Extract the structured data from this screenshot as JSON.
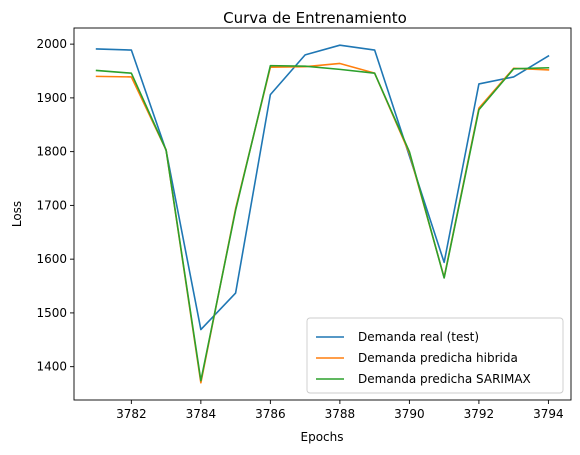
{
  "chart_data": {
    "type": "line",
    "title": "Curva de Entrenamiento",
    "xlabel": "Epochs",
    "ylabel": "Loss",
    "xlim": [
      3780.35,
      3794.65
    ],
    "ylim": [
      1338,
      2030
    ],
    "xticks": [
      3782,
      3784,
      3786,
      3788,
      3790,
      3792,
      3794
    ],
    "yticks": [
      1400,
      1500,
      1600,
      1700,
      1800,
      1900,
      2000
    ],
    "grid": false,
    "legend_position": "lower-right",
    "x": [
      3781,
      3782,
      3783,
      3784,
      3785,
      3786,
      3787,
      3788,
      3789,
      3790,
      3791,
      3792,
      3793,
      3794
    ],
    "series": [
      {
        "name": "Demanda real (test)",
        "color": "#1f77b4",
        "values": [
          1991,
          1989,
          1802,
          1469,
          1537,
          1906,
          1980,
          1998,
          1989,
          1792,
          1594,
          1926,
          1939,
          1978
        ]
      },
      {
        "name": "Demanda predicha hibrida",
        "color": "#ff7f0e",
        "values": [
          1940,
          1939,
          1803,
          1370,
          1694,
          1957,
          1958,
          1964,
          1946,
          1797,
          1566,
          1881,
          1955,
          1952
        ]
      },
      {
        "name": "Demanda predicha SARIMAX",
        "color": "#2ca02c",
        "values": [
          1951,
          1946,
          1803,
          1374,
          1691,
          1960,
          1959,
          1953,
          1946,
          1800,
          1565,
          1878,
          1954,
          1956
        ]
      }
    ]
  }
}
